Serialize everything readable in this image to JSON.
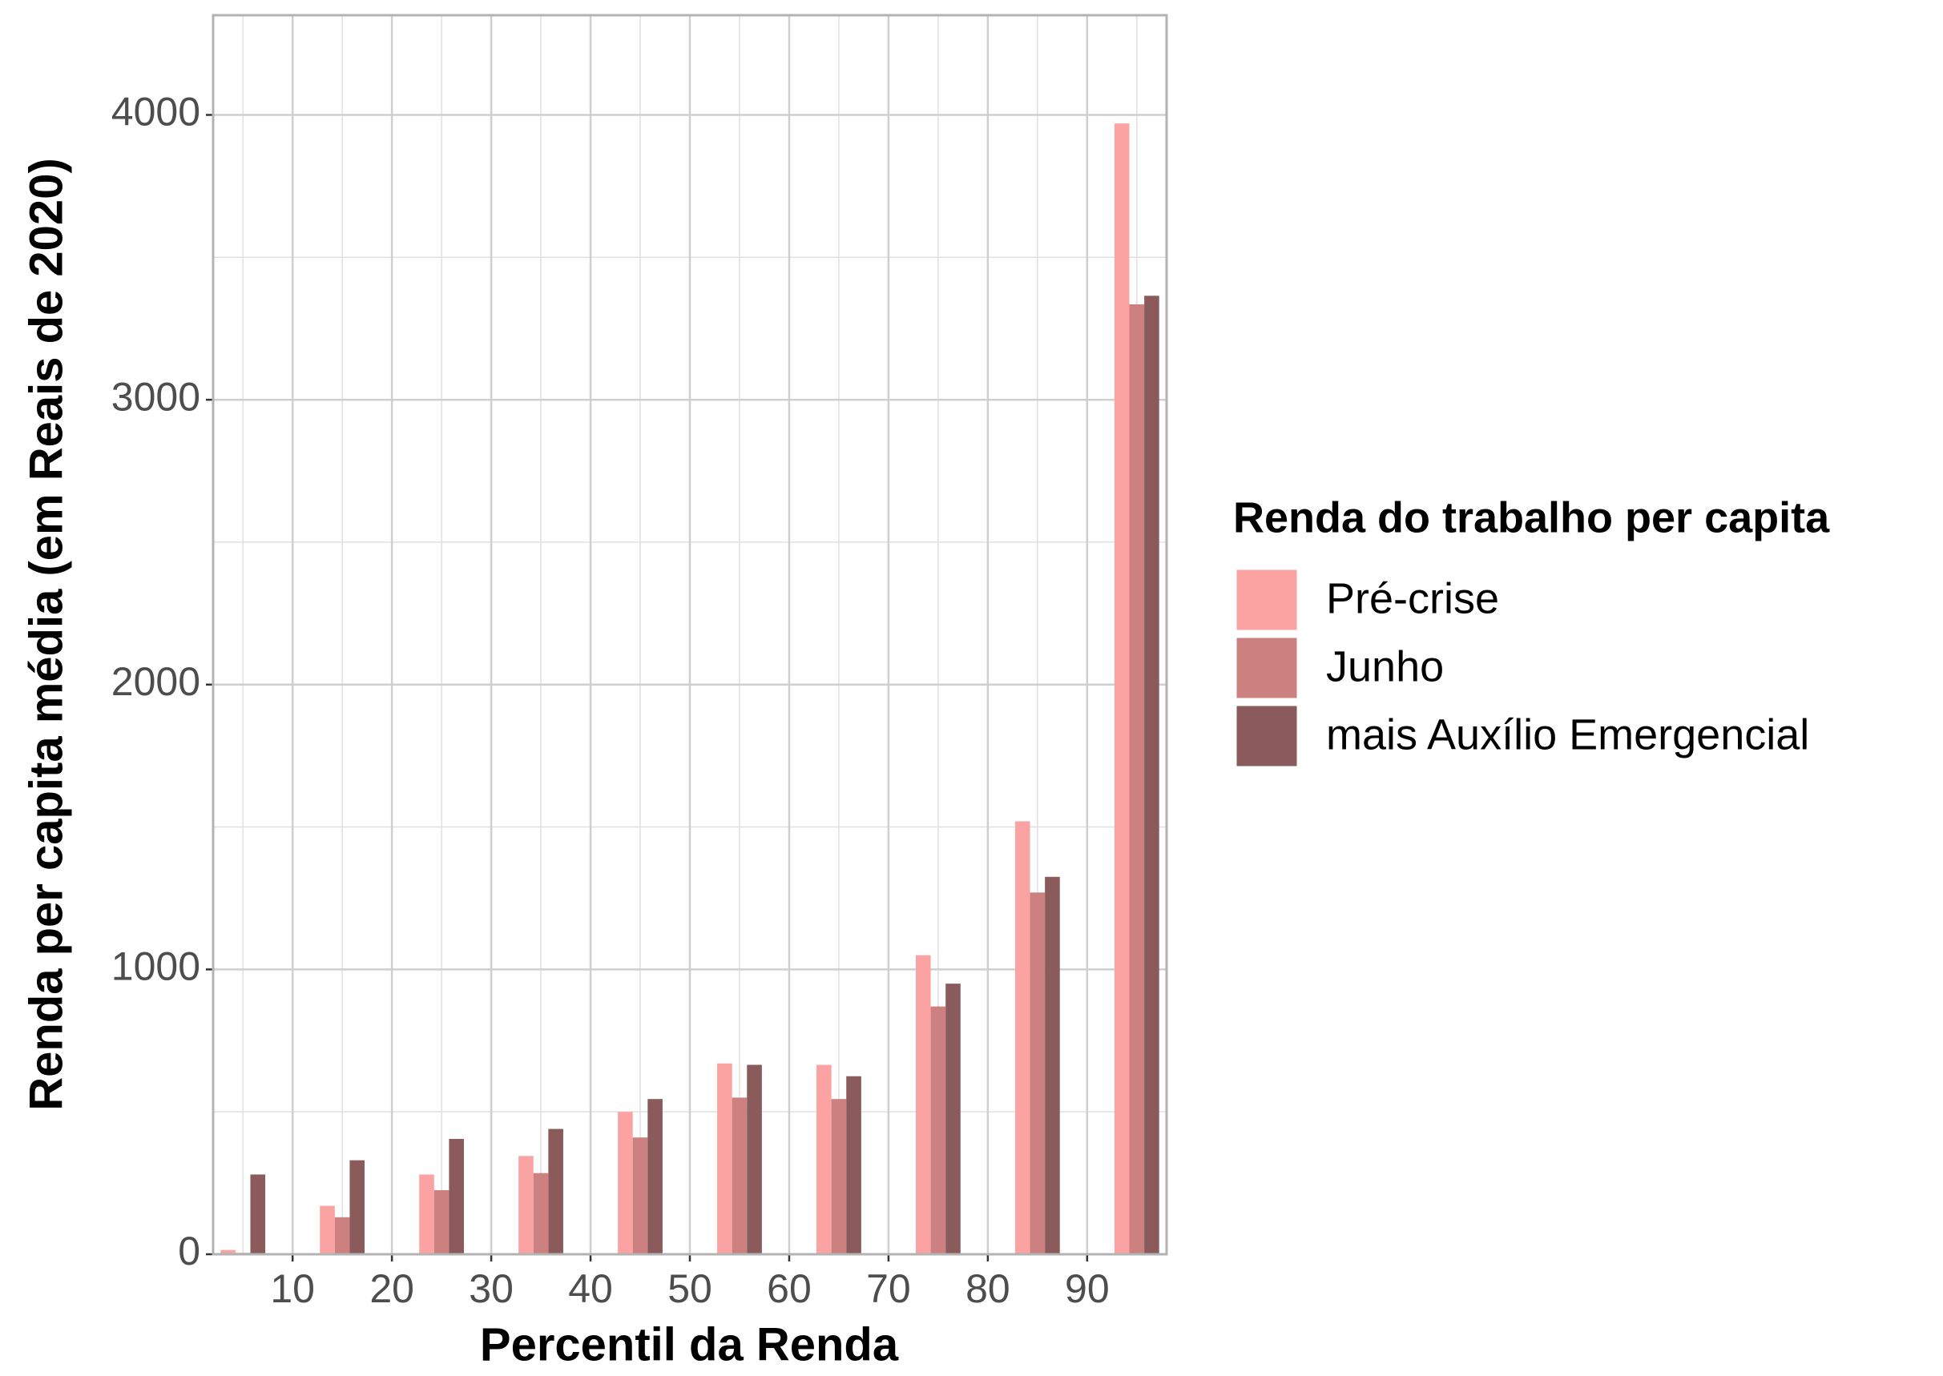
{
  "chart_data": {
    "type": "bar",
    "x_label": "Percentil da Renda",
    "y_label": "Renda per capita média (em Reais de 2020)",
    "legend_title": "Renda do trabalho per capita",
    "x": [
      5,
      15,
      25,
      35,
      45,
      55,
      65,
      75,
      85,
      95
    ],
    "series": [
      {
        "name": "Pré-crise",
        "color": "#fba3a3",
        "values": [
          15,
          170,
          280,
          345,
          500,
          670,
          665,
          1050,
          1520,
          3970
        ]
      },
      {
        "name": "Junho",
        "color": "#cd8080",
        "values": [
          5,
          130,
          225,
          285,
          410,
          550,
          545,
          870,
          1270,
          3335
        ]
      },
      {
        "name": "mais Auxílio Emergencial",
        "color": "#8b5a5a",
        "values": [
          280,
          330,
          405,
          440,
          545,
          665,
          625,
          950,
          1325,
          3365
        ]
      }
    ],
    "xlim": [
      2,
      98
    ],
    "xticks": [
      10,
      20,
      30,
      40,
      50,
      60,
      70,
      80,
      90
    ],
    "x_minor_grid": [
      5,
      15,
      25,
      35,
      45,
      55,
      65,
      75,
      85,
      95
    ],
    "ylim": [
      0,
      4350
    ],
    "yticks": [
      0,
      1000,
      2000,
      3000,
      4000
    ],
    "y_minor_grid": [
      500,
      1500,
      2500,
      3500
    ],
    "grid": true,
    "legend": "right"
  }
}
